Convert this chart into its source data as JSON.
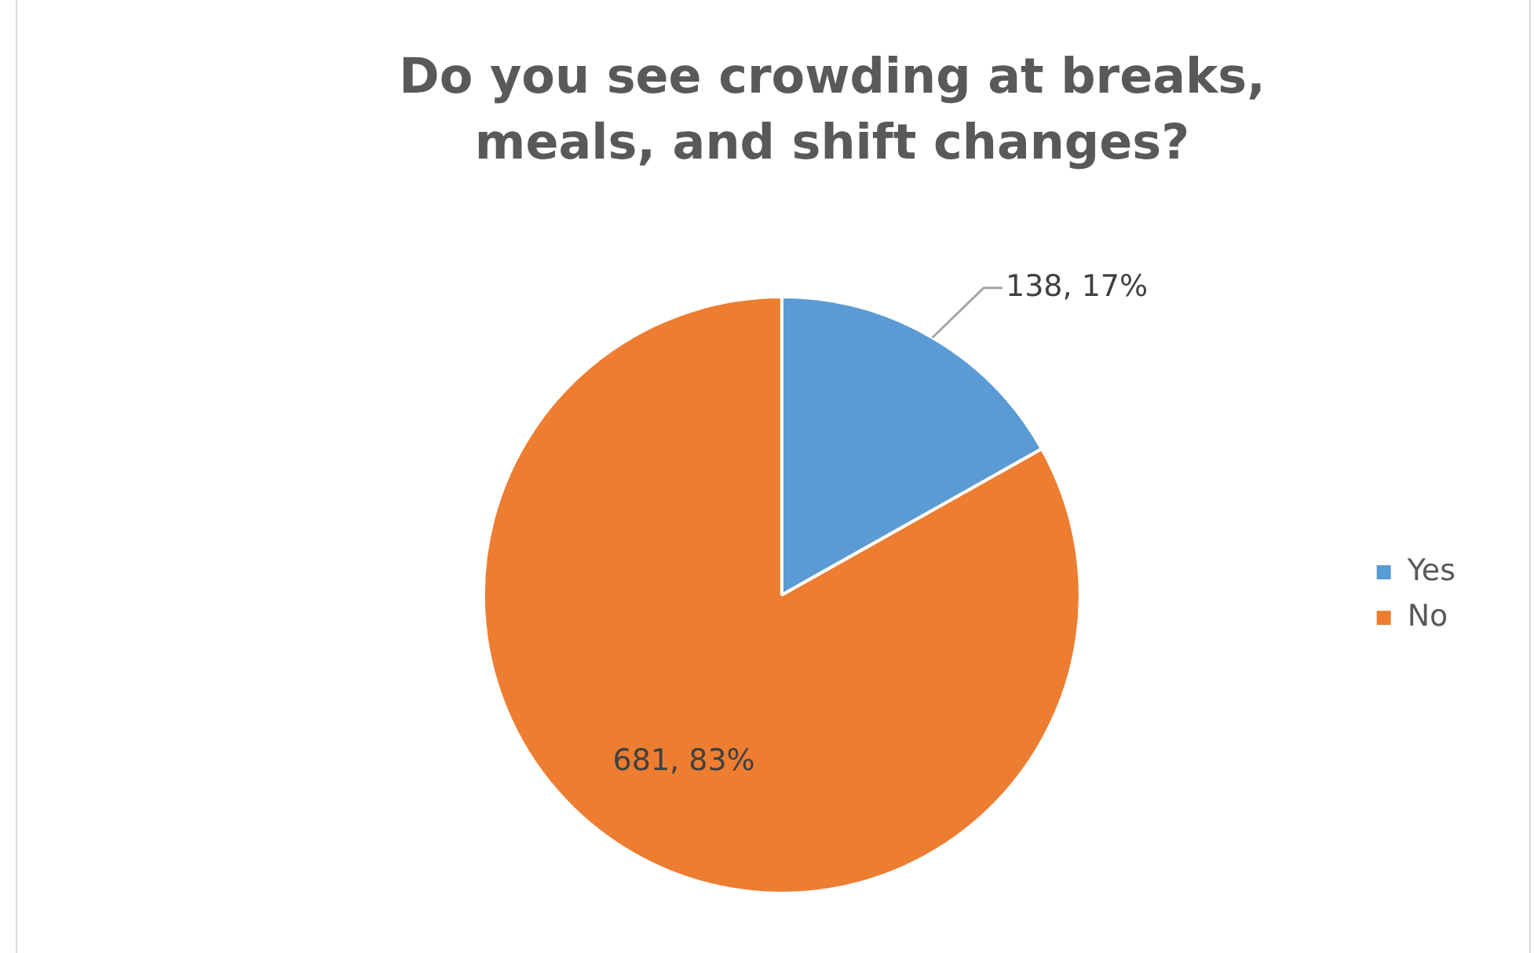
{
  "chart_data": {
    "type": "pie",
    "title": "Do you see crowding at breaks, meals, and shift changes?",
    "categories": [
      "Yes",
      "No"
    ],
    "values": [
      138,
      681
    ],
    "colors": [
      "#5b9bd5",
      "#ed7d31"
    ],
    "value_labels": [
      "138, 17%",
      "681, 83%"
    ],
    "legend": "right"
  }
}
